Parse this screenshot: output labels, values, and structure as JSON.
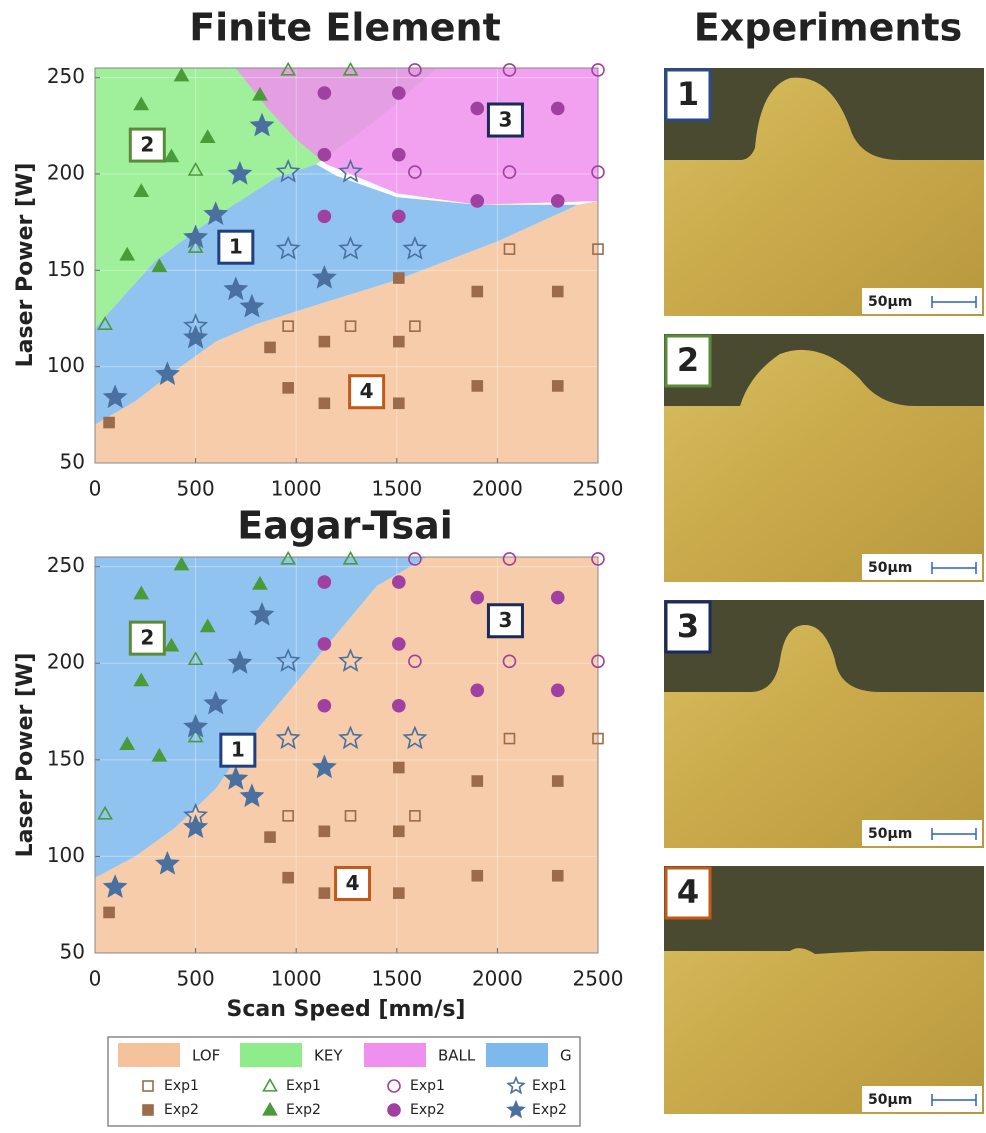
{
  "chart_data": [
    {
      "type": "scatter",
      "title": "Finite Element",
      "ylabel": "Laser Power [W]",
      "xlim": [
        0,
        2500
      ],
      "ylim": [
        50,
        255
      ],
      "xticks": [
        0,
        500,
        1000,
        1500,
        2000,
        2500
      ],
      "yticks": [
        50,
        100,
        150,
        200,
        250
      ],
      "grid": true,
      "regions": [
        {
          "name": "LOF",
          "color": "#f4c39b",
          "x": [
            0,
            0,
            200,
            400,
            600,
            800,
            1100,
            1500,
            2000,
            2400,
            2500,
            2500
          ],
          "values": [
            50,
            70,
            82,
            98,
            113,
            122,
            132,
            145,
            165,
            184,
            186,
            50
          ]
        },
        {
          "name": "KEY",
          "color": "#8eec8a",
          "x": [
            0,
            300,
            600,
            900,
            1100,
            1400,
            1700,
            0
          ],
          "values": [
            120,
            155,
            178,
            198,
            205,
            228,
            255,
            255
          ]
        },
        {
          "name": "BALL",
          "color": "#f090ee",
          "x": [
            700,
            850,
            1000,
            1150,
            1500,
            1900,
            2500,
            2500
          ],
          "values": [
            255,
            235,
            218,
            205,
            190,
            184,
            186,
            255
          ]
        },
        {
          "name": "G",
          "color": "#7eb9ee",
          "x": [
            0,
            200,
            400,
            600,
            800,
            1100,
            1500,
            2000,
            2400,
            1900,
            1500,
            1200,
            1100,
            900,
            600,
            300,
            0
          ],
          "values": [
            70,
            82,
            98,
            113,
            122,
            132,
            145,
            165,
            184,
            184,
            188,
            199,
            205,
            198,
            178,
            155,
            120
          ]
        }
      ],
      "series": [
        {
          "name": "Exp1",
          "group": "LOF",
          "marker": "square",
          "filled": false,
          "color": "#9b6b4a",
          "x": [
            960,
            1270,
            1590,
            2060,
            2500
          ],
          "values": [
            121,
            121,
            121,
            161,
            161
          ]
        },
        {
          "name": "Exp2",
          "group": "LOF",
          "marker": "square",
          "filled": true,
          "color": "#9b6b4a",
          "x": [
            70,
            870,
            960,
            1140,
            1140,
            1510,
            1510,
            1510,
            1900,
            1900,
            2300,
            2300
          ],
          "values": [
            71,
            110,
            89,
            81,
            113,
            81,
            113,
            146,
            90,
            139,
            90,
            139
          ]
        },
        {
          "name": "Exp1",
          "group": "KEY",
          "marker": "triangle",
          "filled": false,
          "color": "#4a9a3a",
          "x": [
            50,
            500,
            500,
            960,
            1270
          ],
          "values": [
            122,
            202,
            162,
            254,
            254
          ]
        },
        {
          "name": "Exp2",
          "group": "KEY",
          "marker": "triangle",
          "filled": true,
          "color": "#4a9a3a",
          "x": [
            160,
            230,
            230,
            320,
            380,
            430,
            560,
            820
          ],
          "values": [
            158,
            236,
            191,
            152,
            209,
            251,
            219,
            241
          ]
        },
        {
          "name": "Exp1",
          "group": "BALL",
          "marker": "circle",
          "filled": false,
          "color": "#a040a0",
          "x": [
            1590,
            2060,
            2500,
            1590,
            2060,
            2500
          ],
          "values": [
            254,
            254,
            254,
            201,
            201,
            201
          ]
        },
        {
          "name": "Exp2",
          "group": "BALL",
          "marker": "circle",
          "filled": true,
          "color": "#a040a0",
          "x": [
            1140,
            1510,
            1900,
            2300,
            1140,
            1510,
            1900,
            2300,
            1140,
            1510
          ],
          "values": [
            242,
            242,
            234,
            234,
            210,
            210,
            186,
            186,
            178,
            178
          ]
        },
        {
          "name": "Exp1",
          "group": "G",
          "marker": "star",
          "filled": false,
          "color": "#4a70a0",
          "x": [
            500,
            960,
            1270,
            960,
            1270,
            1590
          ],
          "values": [
            121,
            201,
            201,
            161,
            161,
            161
          ]
        },
        {
          "name": "Exp2",
          "group": "G",
          "marker": "star",
          "filled": true,
          "color": "#4a70a0",
          "x": [
            100,
            360,
            500,
            500,
            600,
            700,
            720,
            780,
            830,
            1140
          ],
          "values": [
            84,
            96,
            115,
            167,
            179,
            140,
            200,
            131,
            225,
            146
          ]
        }
      ],
      "annotations": [
        {
          "text": "1",
          "color": "#1f3f7f"
        },
        {
          "text": "2",
          "color": "#5a8a3a"
        },
        {
          "text": "3",
          "color": "#1a2a5a"
        },
        {
          "text": "4",
          "color": "#c05a1a"
        }
      ]
    },
    {
      "type": "scatter",
      "title": "Eagar-Tsai",
      "xlabel": "Scan Speed [mm/s]",
      "ylabel": "Laser Power [W]",
      "xlim": [
        0,
        2500
      ],
      "ylim": [
        50,
        255
      ],
      "xticks": [
        0,
        500,
        1000,
        1500,
        2000,
        2500
      ],
      "yticks": [
        50,
        100,
        150,
        200,
        250
      ],
      "grid": true,
      "regions": [
        {
          "color": "#f4c39b",
          "x": [
            0,
            0,
            200,
            400,
            600,
            800,
            1000,
            1200,
            1400,
            1650,
            2500,
            2500
          ],
          "values": [
            50,
            89,
            100,
            115,
            135,
            165,
            190,
            215,
            240,
            255,
            255,
            50
          ]
        },
        {
          "color": "#7eb9ee",
          "x": [
            0,
            200,
            400,
            600,
            800,
            1000,
            1200,
            1400,
            1650,
            0
          ],
          "values": [
            89,
            100,
            115,
            135,
            165,
            190,
            215,
            240,
            255,
            255
          ]
        }
      ],
      "series": [
        {
          "marker": "square",
          "filled": false,
          "color": "#9b6b4a",
          "x": [
            960,
            1270,
            1590,
            2060,
            2500
          ],
          "values": [
            121,
            121,
            121,
            161,
            161
          ]
        },
        {
          "marker": "square",
          "filled": true,
          "color": "#9b6b4a",
          "x": [
            70,
            870,
            960,
            1140,
            1140,
            1510,
            1510,
            1510,
            1900,
            1900,
            2300,
            2300
          ],
          "values": [
            71,
            110,
            89,
            81,
            113,
            81,
            113,
            146,
            90,
            139,
            90,
            139
          ]
        },
        {
          "marker": "triangle",
          "filled": false,
          "color": "#4a9a3a",
          "x": [
            50,
            500,
            500,
            960,
            1270
          ],
          "values": [
            122,
            202,
            162,
            254,
            254
          ]
        },
        {
          "marker": "triangle",
          "filled": true,
          "color": "#4a9a3a",
          "x": [
            160,
            230,
            230,
            320,
            380,
            430,
            560,
            820
          ],
          "values": [
            158,
            236,
            191,
            152,
            209,
            251,
            219,
            241
          ]
        },
        {
          "marker": "circle",
          "filled": false,
          "color": "#a040a0",
          "x": [
            1590,
            2060,
            2500,
            1590,
            2060,
            2500
          ],
          "values": [
            254,
            254,
            254,
            201,
            201,
            201
          ]
        },
        {
          "marker": "circle",
          "filled": true,
          "color": "#a040a0",
          "x": [
            1140,
            1510,
            1900,
            2300,
            1140,
            1510,
            1900,
            2300,
            1140,
            1510
          ],
          "values": [
            242,
            242,
            234,
            234,
            210,
            210,
            186,
            186,
            178,
            178
          ]
        },
        {
          "marker": "star",
          "filled": false,
          "color": "#4a70a0",
          "x": [
            500,
            960,
            1270,
            960,
            1270,
            1590
          ],
          "values": [
            121,
            201,
            201,
            161,
            161,
            161
          ]
        },
        {
          "marker": "star",
          "filled": true,
          "color": "#4a70a0",
          "x": [
            100,
            360,
            500,
            500,
            600,
            700,
            720,
            780,
            830,
            1140
          ],
          "values": [
            84,
            96,
            115,
            167,
            179,
            140,
            200,
            131,
            225,
            146
          ]
        }
      ],
      "annotations": [
        {
          "text": "1",
          "color": "#1f3f7f"
        },
        {
          "text": "2",
          "color": "#5a8a3a"
        },
        {
          "text": "3",
          "color": "#1a2a5a"
        },
        {
          "text": "4",
          "color": "#c05a1a"
        }
      ]
    }
  ],
  "experiments": {
    "title": "Experiments",
    "panels": [
      {
        "label": "1",
        "color": "#2a4a8a",
        "scale_bar": "50µm"
      },
      {
        "label": "2",
        "color": "#5a8a3a",
        "scale_bar": "50µm"
      },
      {
        "label": "3",
        "color": "#1a2a5a",
        "scale_bar": "50µm"
      },
      {
        "label": "4",
        "color": "#c05a1a",
        "scale_bar": "50µm"
      }
    ]
  }
}
